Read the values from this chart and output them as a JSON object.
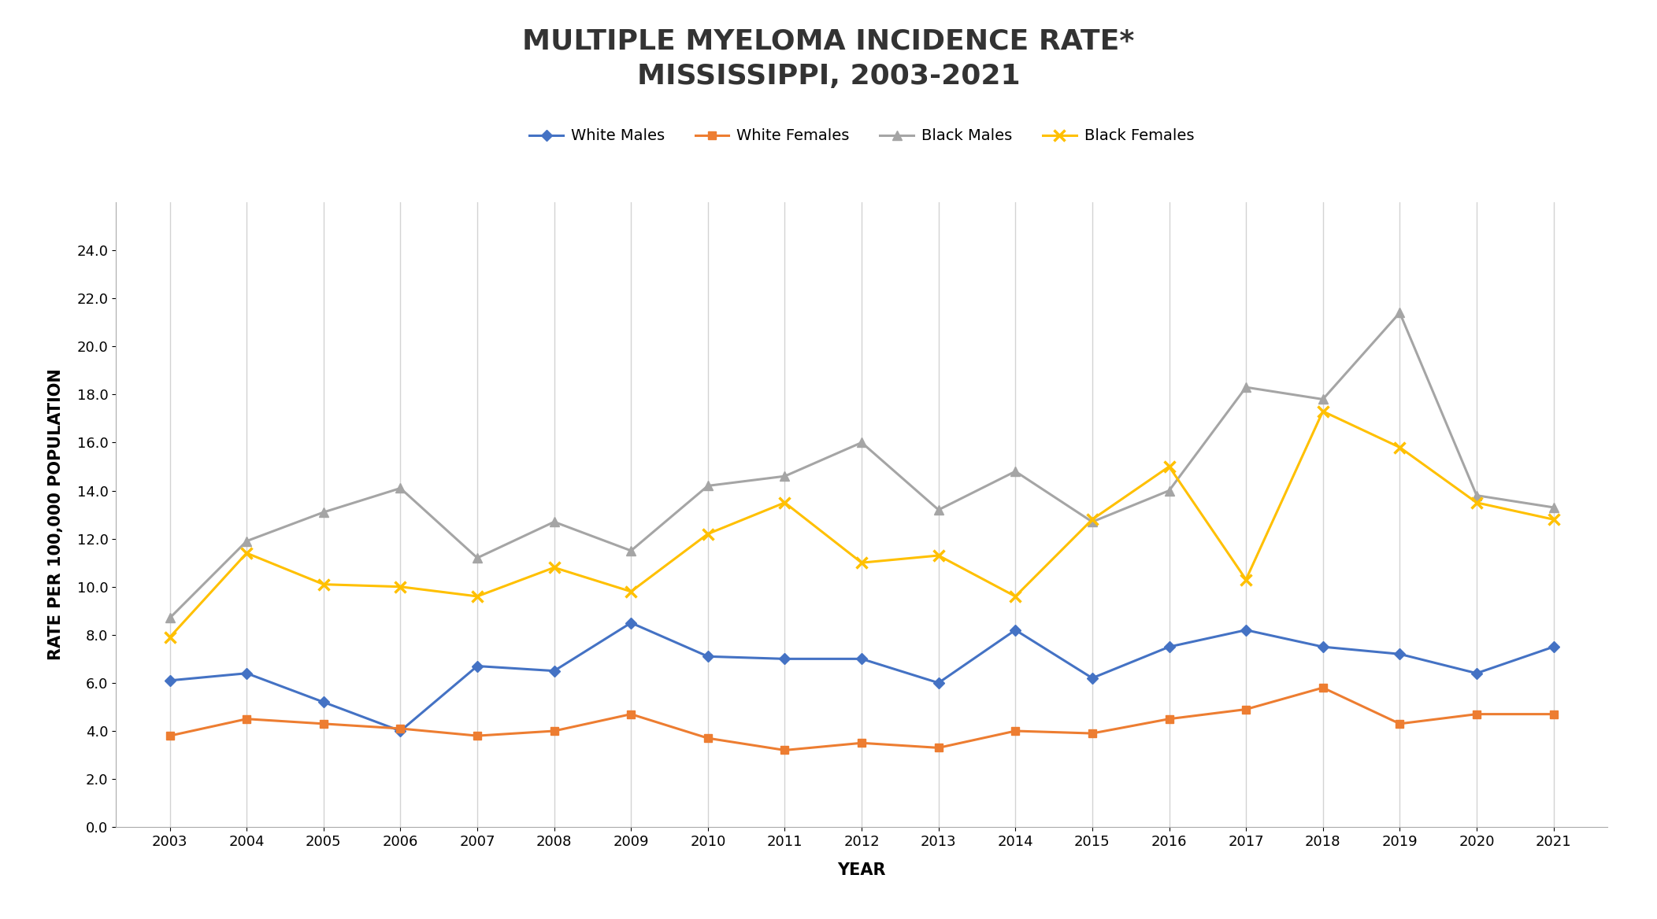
{
  "title": "MULTIPLE MYELOMA INCIDENCE RATE*\nMISSISSIPPI, 2003-2021",
  "xlabel": "YEAR",
  "ylabel": "RATE PER 100,000 POPULATION",
  "years": [
    2003,
    2004,
    2005,
    2006,
    2007,
    2008,
    2009,
    2010,
    2011,
    2012,
    2013,
    2014,
    2015,
    2016,
    2017,
    2018,
    2019,
    2020,
    2021
  ],
  "white_males": [
    6.1,
    6.4,
    5.2,
    4.0,
    6.7,
    6.5,
    8.5,
    7.1,
    7.0,
    7.0,
    6.0,
    8.2,
    6.2,
    7.5,
    8.2,
    7.5,
    7.2,
    6.4,
    7.5
  ],
  "white_females": [
    3.8,
    4.5,
    4.3,
    4.1,
    3.8,
    4.0,
    4.7,
    3.7,
    3.2,
    3.5,
    3.3,
    4.0,
    3.9,
    4.5,
    4.9,
    5.8,
    4.3,
    4.7,
    4.7
  ],
  "black_males": [
    8.7,
    11.9,
    13.1,
    14.1,
    11.2,
    12.7,
    11.5,
    14.2,
    14.6,
    16.0,
    13.2,
    14.8,
    12.7,
    14.0,
    18.3,
    17.8,
    21.4,
    13.8,
    13.3
  ],
  "black_females": [
    7.9,
    11.4,
    10.1,
    10.0,
    9.6,
    10.8,
    9.8,
    12.2,
    13.5,
    11.0,
    11.3,
    9.6,
    12.8,
    15.0,
    10.3,
    17.3,
    15.8,
    13.5,
    12.8
  ],
  "white_males_color": "#4472C4",
  "white_females_color": "#ED7D31",
  "black_males_color": "#A5A5A5",
  "black_females_color": "#FFC000",
  "ylim": [
    0,
    26
  ],
  "yticks": [
    0.0,
    2.0,
    4.0,
    6.0,
    8.0,
    10.0,
    12.0,
    14.0,
    16.0,
    18.0,
    20.0,
    22.0,
    24.0
  ],
  "title_fontsize": 26,
  "axis_label_fontsize": 15,
  "tick_fontsize": 13,
  "legend_fontsize": 14,
  "background_color": "#FFFFFF",
  "grid_color": "#D3D3D3"
}
